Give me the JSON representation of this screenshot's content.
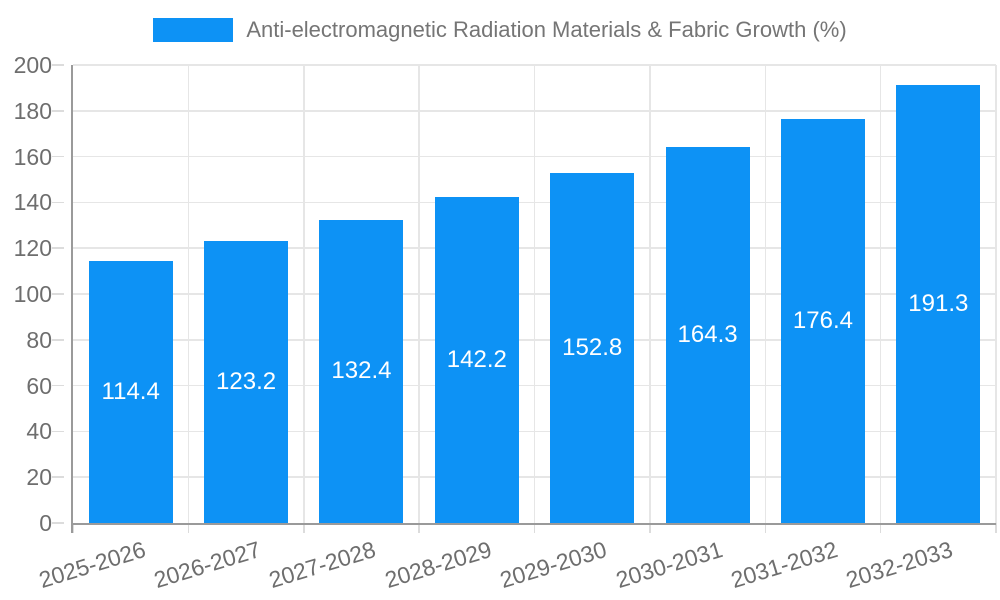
{
  "legend": {
    "label": "Anti-electromagnetic Radiation Materials & Fabric Growth (%)"
  },
  "chart_data": {
    "type": "bar",
    "title": "Anti-electromagnetic Radiation Materials & Fabric Growth (%)",
    "categories": [
      "2025-2026",
      "2026-2027",
      "2027-2028",
      "2028-2029",
      "2029-2030",
      "2030-2031",
      "2031-2032",
      "2032-2033"
    ],
    "values": [
      114.4,
      123.2,
      132.4,
      142.2,
      152.8,
      164.3,
      176.4,
      191.3
    ],
    "value_labels": [
      "114.4",
      "123.2",
      "132.4",
      "142.2",
      "152.8",
      "164.3",
      "176.4",
      "191.3"
    ],
    "xlabel": "",
    "ylabel": "",
    "ylim": [
      0,
      200
    ],
    "yticks": [
      0,
      20,
      40,
      60,
      80,
      100,
      120,
      140,
      160,
      180,
      200
    ],
    "grid": true,
    "legend_position": "top",
    "bar_color": "#0d92f5",
    "value_label_color": "#ffffff",
    "grid_color": "#e6e6e6",
    "axis_color": "#9a9a9a",
    "tick_label_color": "#6e6e6e",
    "title_color": "#757575",
    "background_color": "#ffffff"
  }
}
